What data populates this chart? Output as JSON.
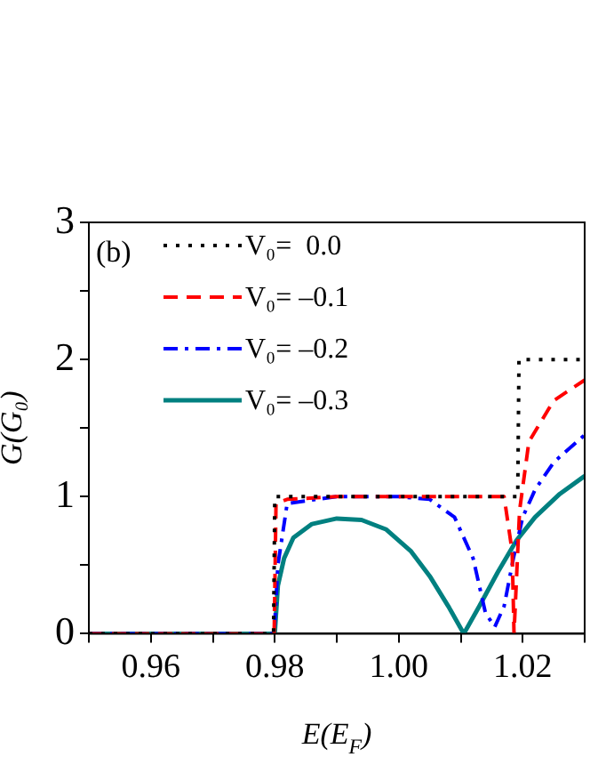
{
  "chart_data": {
    "type": "line",
    "xlabel": "E(E$_{F}$)",
    "ylabel": "G(G₀)",
    "annotations": [
      "(b)"
    ],
    "xlim": [
      0.95,
      1.03
    ],
    "ylim": [
      0,
      3
    ],
    "xticks": [
      {
        "value": 0.95,
        "label": null
      },
      {
        "value": 0.96,
        "label": "0.96"
      },
      {
        "value": 0.97,
        "label": null
      },
      {
        "value": 0.98,
        "label": "0.98"
      },
      {
        "value": 0.99,
        "label": null
      },
      {
        "value": 1.0,
        "label": "1.00"
      },
      {
        "value": 1.01,
        "label": null
      },
      {
        "value": 1.02,
        "label": "1.02"
      },
      {
        "value": 1.03,
        "label": null
      }
    ],
    "yticks": [
      0,
      {
        "value": 0.5,
        "label": null
      },
      1,
      {
        "value": 1.5,
        "label": null
      },
      2,
      {
        "value": 2.5,
        "label": null
      },
      3
    ],
    "grid": false,
    "legend": "top left",
    "marker": "none",
    "series": [
      {
        "name": "V₀=  0.0",
        "color": "#000000",
        "line_style": "dotted",
        "x": [
          0.95,
          0.9798,
          0.98,
          1.0,
          1.0192,
          1.0194,
          1.03
        ],
        "values": [
          0,
          0,
          1,
          1,
          1,
          2,
          2
        ]
      },
      {
        "name": "V₀= –0.1",
        "color": "#ff0000",
        "line_style": "dashed",
        "x": [
          0.95,
          0.9799,
          0.9802,
          0.982,
          0.99,
          1.0,
          1.01,
          1.017,
          1.0183,
          1.0186,
          1.0189,
          1.0195,
          1.021,
          1.025,
          1.03
        ],
        "values": [
          0,
          0,
          0.95,
          0.98,
          1,
          1,
          1,
          1,
          0.6,
          0,
          0.3,
          0.9,
          1.4,
          1.7,
          1.85
        ]
      },
      {
        "name": "V₀= –0.2",
        "color": "#0000ff",
        "line_style": "dashdot",
        "x": [
          0.95,
          0.9799,
          0.9805,
          0.982,
          0.99,
          1.0,
          1.005,
          1.009,
          1.012,
          1.014,
          1.0155,
          1.017,
          1.0185,
          1.02,
          1.022,
          1.025,
          1.03
        ],
        "values": [
          0,
          0,
          0.5,
          0.95,
          1,
          1,
          0.98,
          0.85,
          0.55,
          0.15,
          0.05,
          0.2,
          0.55,
          0.85,
          1.05,
          1.25,
          1.45
        ]
      },
      {
        "name": "V₀= –0.3",
        "color": "#008080",
        "line_style": "solid",
        "x": [
          0.95,
          0.98,
          0.9805,
          0.9815,
          0.983,
          0.986,
          0.99,
          0.994,
          0.998,
          1.002,
          1.005,
          1.008,
          1.0105,
          1.013,
          1.016,
          1.019,
          1.022,
          1.026,
          1.03
        ],
        "values": [
          0,
          0,
          0.35,
          0.55,
          0.7,
          0.8,
          0.84,
          0.83,
          0.76,
          0.6,
          0.42,
          0.2,
          0.0,
          0.2,
          0.45,
          0.68,
          0.85,
          1.02,
          1.15
        ]
      }
    ]
  }
}
